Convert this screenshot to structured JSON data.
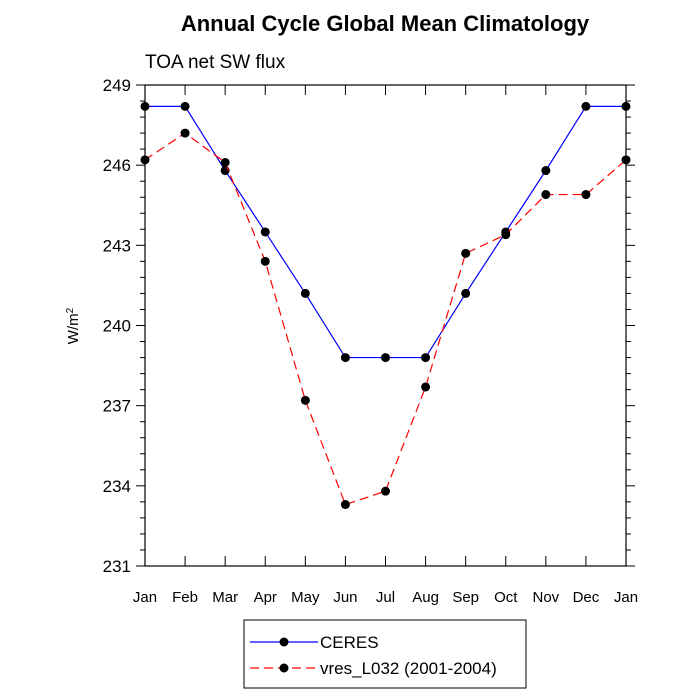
{
  "chart_data": {
    "type": "line",
    "title": "Annual Cycle Global Mean Climatology",
    "subtitle": "TOA net SW flux",
    "ylabel_base": "W/m",
    "ylabel_sup": "2",
    "xlabel": "",
    "categories": [
      "Jan",
      "Feb",
      "Mar",
      "Apr",
      "May",
      "Jun",
      "Jul",
      "Aug",
      "Sep",
      "Oct",
      "Nov",
      "Dec",
      "Jan"
    ],
    "ylim": [
      231,
      249
    ],
    "yticks": [
      231,
      234,
      237,
      240,
      243,
      246,
      249
    ],
    "y_minor_step": 0.6,
    "series": [
      {
        "name": "CERES",
        "color": "#0000ff",
        "dash": "solid",
        "values": [
          248.2,
          248.2,
          245.8,
          243.5,
          241.2,
          238.8,
          238.8,
          238.8,
          241.2,
          243.5,
          245.8,
          248.2,
          248.2
        ]
      },
      {
        "name": "vres_L032 (2001-2004)",
        "color": "#ff0000",
        "dash": "dashed",
        "values": [
          246.2,
          247.2,
          246.1,
          242.4,
          237.2,
          233.3,
          233.8,
          237.7,
          242.7,
          243.4,
          244.9,
          244.9,
          246.2
        ]
      }
    ],
    "legend": {
      "position": "bottom-center"
    }
  }
}
